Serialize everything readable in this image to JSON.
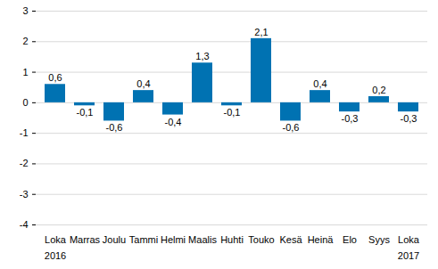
{
  "chart_data": {
    "type": "bar",
    "categories": [
      "Loka\n2016",
      "Marras",
      "Joulu",
      "Tammi",
      "Helmi",
      "Maalis",
      "Huhti",
      "Touko",
      "Kesä",
      "Heinä",
      "Elo",
      "Syys",
      "Loka\n2017"
    ],
    "values": [
      0.6,
      -0.1,
      -0.6,
      0.4,
      -0.4,
      1.3,
      -0.1,
      2.1,
      -0.6,
      0.4,
      -0.3,
      0.2,
      -0.3
    ],
    "value_labels": [
      "0,6",
      "-0,1",
      "-0,6",
      "0,4",
      "-0,4",
      "1,3",
      "-0,1",
      "2,1",
      "-0,6",
      "0,4",
      "-0,3",
      "0,2",
      "-0,3"
    ],
    "data_labels": true,
    "color": "#0072b2",
    "ylim": [
      -4,
      3
    ],
    "yticks": [
      -4,
      -3,
      -2,
      -1,
      0,
      1,
      2,
      3
    ],
    "grid": true
  }
}
